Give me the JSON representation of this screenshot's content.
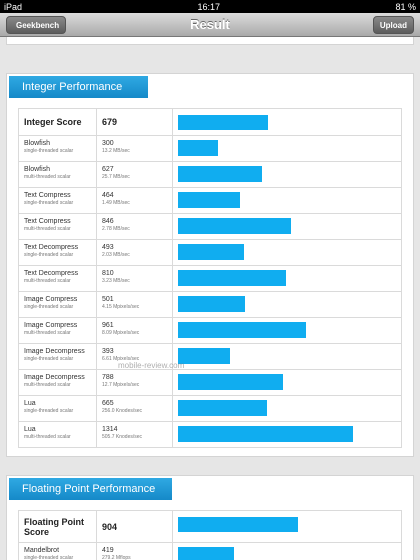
{
  "status_bar": {
    "carrier": "iPad",
    "time": "16:17",
    "battery": "81 %"
  },
  "nav_bar": {
    "back": "Geekbench",
    "title": "Result",
    "action": "Upload"
  },
  "sections": [
    {
      "title": "Integer Performance",
      "score_label": "Integer Score",
      "score": 679,
      "rows": [
        {
          "name": "Blowfish",
          "detail": "single-threaded scalar",
          "score": 300,
          "rate": "13.2 MB/sec"
        },
        {
          "name": "Blowfish",
          "detail": "multi-threaded scalar",
          "score": 627,
          "rate": "25.7 MB/sec"
        },
        {
          "name": "Text Compress",
          "detail": "single-threaded scalar",
          "score": 464,
          "rate": "1.49 MB/sec"
        },
        {
          "name": "Text Compress",
          "detail": "multi-threaded scalar",
          "score": 846,
          "rate": "2.78 MB/sec"
        },
        {
          "name": "Text Decompress",
          "detail": "single-threaded scalar",
          "score": 493,
          "rate": "2.03 MB/sec"
        },
        {
          "name": "Text Decompress",
          "detail": "multi-threaded scalar",
          "score": 810,
          "rate": "3.23 MB/sec"
        },
        {
          "name": "Image Compress",
          "detail": "single-threaded scalar",
          "score": 501,
          "rate": "4.15 Mpixels/sec"
        },
        {
          "name": "Image Compress",
          "detail": "multi-threaded scalar",
          "score": 961,
          "rate": "8.09 Mpixels/sec"
        },
        {
          "name": "Image Decompress",
          "detail": "single-threaded scalar",
          "score": 393,
          "rate": "6.61 Mpixels/sec"
        },
        {
          "name": "Image Decompress",
          "detail": "multi-threaded scalar",
          "score": 788,
          "rate": "12.7 Mpixels/sec"
        },
        {
          "name": "Lua",
          "detail": "single-threaded scalar",
          "score": 665,
          "rate": "256.0 Knodes/sec"
        },
        {
          "name": "Lua",
          "detail": "multi-threaded scalar",
          "score": 1314,
          "rate": "505.7 Knodes/sec"
        }
      ]
    },
    {
      "title": "Floating Point Performance",
      "score_label": "Floating Point Score",
      "score": 904,
      "rows": [
        {
          "name": "Mandelbrot",
          "detail": "single-threaded scalar",
          "score": 419,
          "rate": "279.2 Mflops"
        }
      ]
    }
  ],
  "watermark": "mobile-review.com"
}
